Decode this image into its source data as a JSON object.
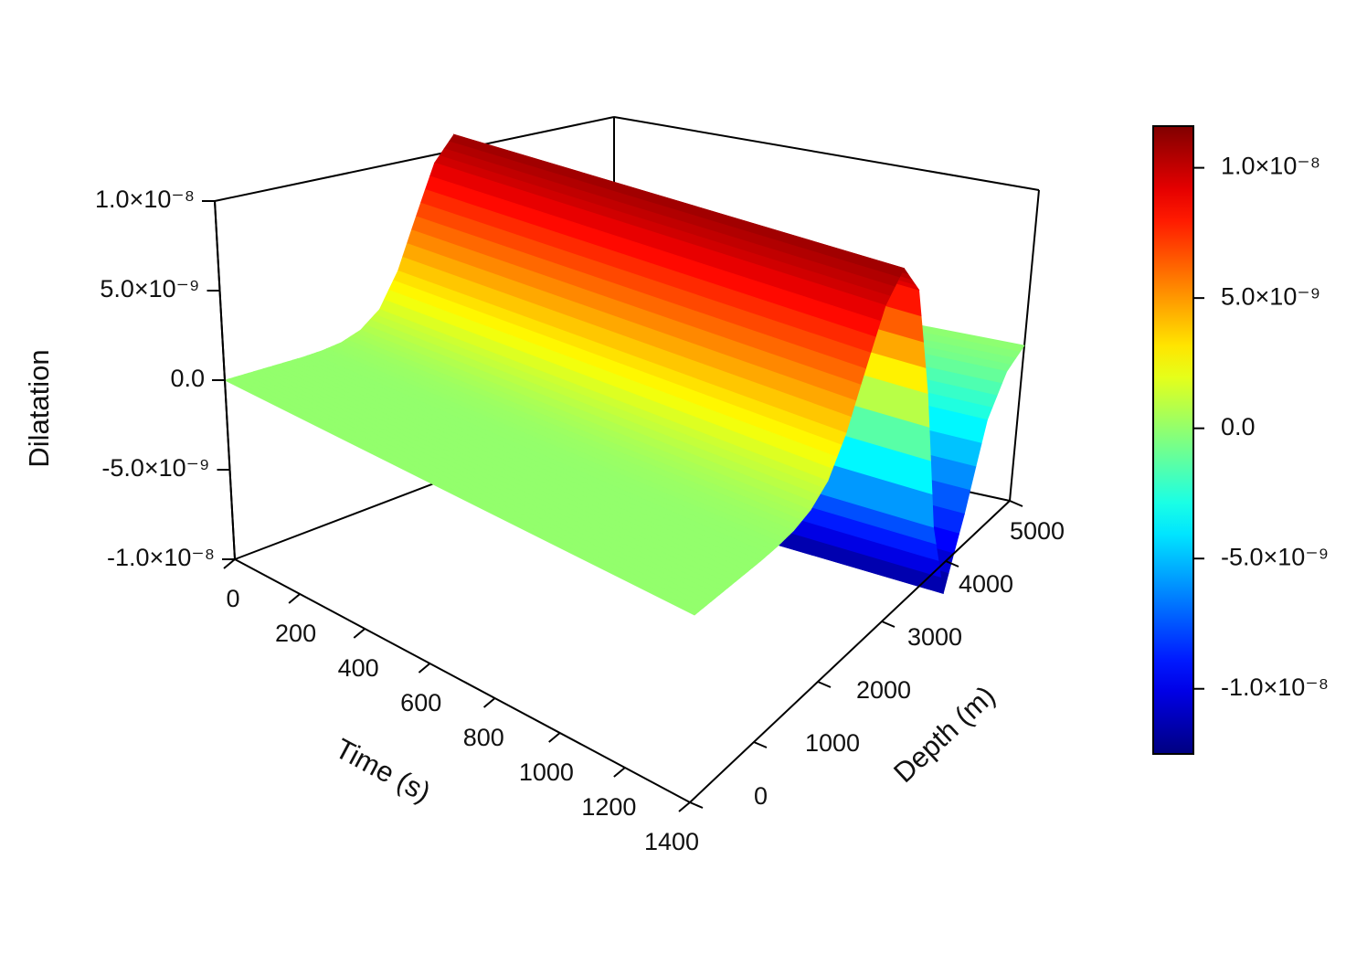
{
  "chart_data": {
    "type": "surface3d",
    "x_label": "Time (s)",
    "y_label": "Depth (m)",
    "z_label": "Dilatation",
    "xlim": [
      0,
      1400
    ],
    "xticks": [
      0,
      200,
      400,
      600,
      800,
      1000,
      1200,
      1400
    ],
    "ylim": [
      0,
      5000
    ],
    "yticks": [
      0,
      1000,
      2000,
      3000,
      4000,
      5000
    ],
    "zlim": [
      -1e-08,
      1e-08
    ],
    "zticks": [
      {
        "value": -1e-08,
        "label": "-1.0×10⁻⁸"
      },
      {
        "value": -5e-09,
        "label": "-5.0×10⁻⁹"
      },
      {
        "value": 0,
        "label": "0.0"
      },
      {
        "value": 5e-09,
        "label": "5.0×10⁻⁹"
      },
      {
        "value": 1e-08,
        "label": "1.0×10⁻⁸"
      }
    ],
    "colormap": "jet",
    "clim": [
      -1.25e-08,
      1.16e-08
    ],
    "colorbar_ticks": [
      {
        "value": -1e-08,
        "label": "-1.0×10⁻⁸"
      },
      {
        "value": -5e-09,
        "label": "-5.0×10⁻⁹"
      },
      {
        "value": 0,
        "label": "0.0"
      },
      {
        "value": 5e-09,
        "label": "5.0×10⁻⁹"
      },
      {
        "value": 1e-08,
        "label": "1.0×10⁻⁸"
      }
    ],
    "y": [
      0,
      250,
      500,
      750,
      1000,
      1250,
      1500,
      1750,
      2000,
      2250,
      2500,
      2750,
      3000,
      3250,
      3500,
      3750,
      4000,
      4250,
      4500,
      4750,
      5000
    ],
    "values": [
      0,
      0,
      0,
      0,
      0,
      5e-11,
      2e-10,
      6e-10,
      1.5e-09,
      3.5e-09,
      6.5e-09,
      9.5e-09,
      1.1e-08,
      9e-09,
      2e-09,
      -7e-09,
      -1.2e-08,
      -8e-09,
      -3e-09,
      -8e-10,
      0
    ]
  }
}
